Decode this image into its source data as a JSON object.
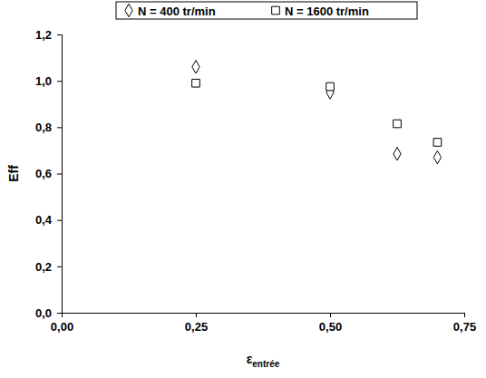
{
  "chart_data": {
    "type": "scatter",
    "x_label": {
      "text": "ε",
      "subscript": "entrée"
    },
    "y_label": "Eff",
    "x": [
      0.25,
      0.5,
      0.625,
      0.7
    ],
    "series": [
      {
        "name": "N = 400 tr/min",
        "color": "#000000",
        "marker": "diamond",
        "values": [
          1.06,
          0.95,
          0.685,
          0.67
        ]
      },
      {
        "name": "N = 1600 tr/min",
        "color": "#000000",
        "marker": "square",
        "values": [
          0.99,
          0.975,
          0.815,
          0.735
        ]
      }
    ],
    "xlim": [
      0,
      0.75
    ],
    "xticks": [
      {
        "value": 0,
        "label": "0,00"
      },
      {
        "value": 0.25,
        "label": "0,25"
      },
      {
        "value": 0.5,
        "label": "0,50"
      },
      {
        "value": 0.75,
        "label": "0,75"
      }
    ],
    "ylim": [
      0,
      1.2
    ],
    "yticks": [
      {
        "value": 0,
        "label": "0,0"
      },
      {
        "value": 0.2,
        "label": "0,2"
      },
      {
        "value": 0.4,
        "label": "0,4"
      },
      {
        "value": 0.6,
        "label": "0,6"
      },
      {
        "value": 0.8,
        "label": "0,8"
      },
      {
        "value": 1.0,
        "label": "1,0"
      },
      {
        "value": 1.2,
        "label": "1,2"
      }
    ],
    "grid": false,
    "legend": "top"
  }
}
